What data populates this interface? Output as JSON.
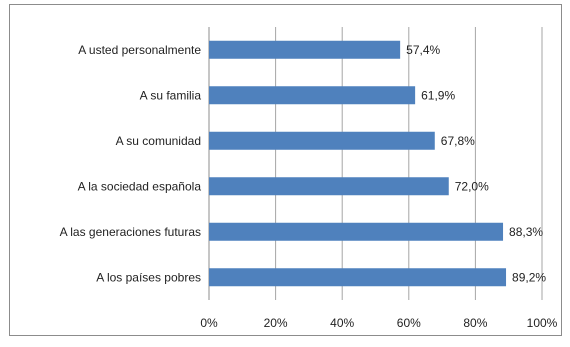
{
  "chart_data": {
    "type": "bar",
    "orientation": "horizontal",
    "categories": [
      "A usted personalmente",
      "A su familia",
      "A su comunidad",
      "A la sociedad española",
      "A las generaciones futuras",
      "A los países pobres"
    ],
    "values": [
      57.4,
      61.9,
      67.8,
      72.0,
      88.3,
      89.2
    ],
    "value_labels": [
      "57,4%",
      "61,9%",
      "67,8%",
      "72,0%",
      "88,3%",
      "89,2%"
    ],
    "xlim": [
      0,
      100
    ],
    "x_ticks": [
      "0%",
      "20%",
      "40%",
      "60%",
      "80%",
      "100%"
    ],
    "grid": true,
    "bar_color": "#4f81bd",
    "title": "",
    "xlabel": "",
    "ylabel": ""
  }
}
